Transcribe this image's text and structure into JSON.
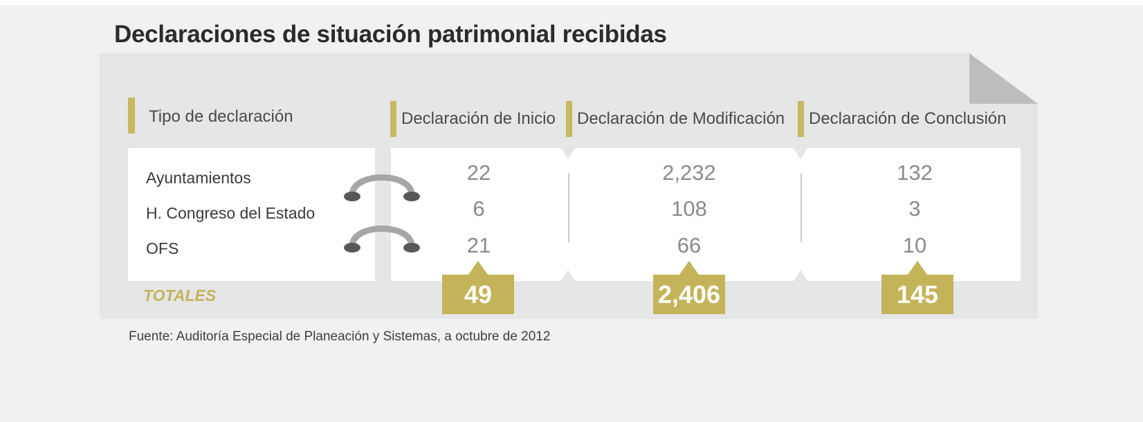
{
  "title": "Declaraciones de situación patrimonial recibidas",
  "table": {
    "row_header": "Tipo de declaración",
    "columns": [
      "Declaración de Inicio",
      "Declaración de Modificación",
      "Declaración de Conclusión"
    ],
    "rows": [
      {
        "label": "Ayuntamientos",
        "values": [
          "22",
          "2,232",
          "132"
        ]
      },
      {
        "label": "H. Congreso del Estado",
        "values": [
          "6",
          "108",
          "3"
        ]
      },
      {
        "label": "OFS",
        "values": [
          "21",
          "66",
          "10"
        ]
      }
    ],
    "totals_label": "TOTALES",
    "totals": [
      "49",
      "2,406",
      "145"
    ]
  },
  "source": "Fuente: Auditoría Especial de Planeación y Sistemas, a octubre de 2012",
  "colors": {
    "accent": "#c4b459",
    "panel": "#e5e6e6",
    "fold": "#bcbdbf"
  }
}
